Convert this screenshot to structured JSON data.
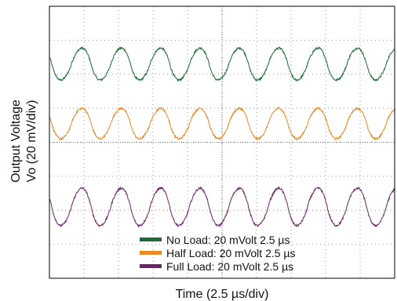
{
  "chart_data": {
    "type": "line",
    "title": "",
    "xlabel": "Time (2.5 µs/div)",
    "ylabel_lines": [
      "Output Voltage",
      "Vo (20 mV/div)"
    ],
    "grid": true,
    "divisions": {
      "x": 10,
      "y": 8
    },
    "x_units": "div",
    "y_units": "div",
    "xlim": [
      0,
      10
    ],
    "ylim": [
      0,
      8
    ],
    "legend_position": "bottom-center",
    "series": [
      {
        "name": "No Load: 20 mVolt 2.5 µs",
        "color": "#1e6b35",
        "center_div": 6.3,
        "amplitude_div": 0.47,
        "period_div": 1.14,
        "first_peak_div": 0.95
      },
      {
        "name": "Half Load: 20 mVolt 2.5 µs",
        "color": "#e8892a",
        "center_div": 4.55,
        "amplitude_div": 0.45,
        "period_div": 1.14,
        "first_peak_div": 0.95
      },
      {
        "name": "Full Load: 20 mVolt 2.5 µs",
        "color": "#6a2467",
        "center_div": 2.1,
        "amplitude_div": 0.55,
        "period_div": 1.14,
        "first_peak_div": 0.95
      }
    ]
  }
}
